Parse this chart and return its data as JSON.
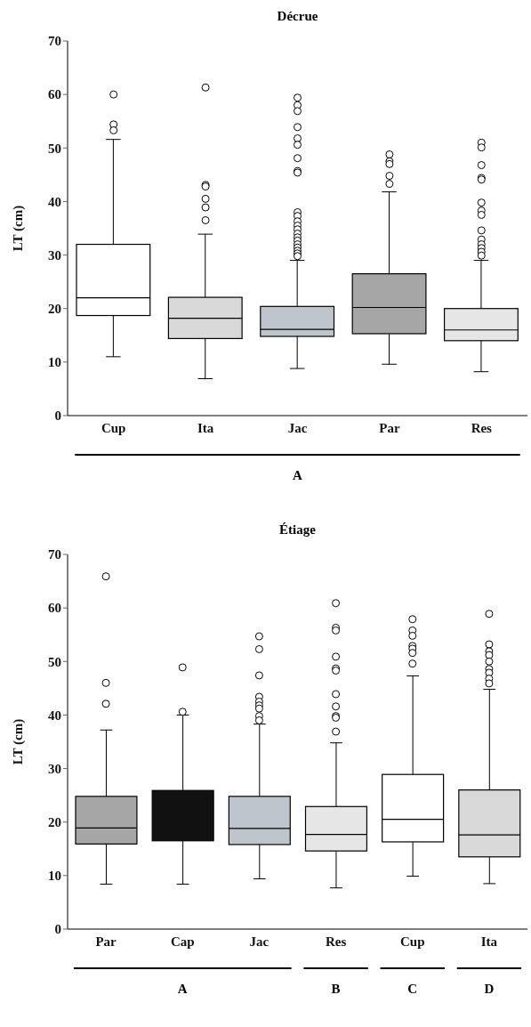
{
  "chart_data": [
    {
      "type": "box",
      "title": "Décrue",
      "ylabel": "LT (cm)",
      "categories": [
        "Cup",
        "Ita",
        "Jac",
        "Par",
        "Res"
      ],
      "colors": [
        "#ffffff",
        "#d9d9d9",
        "#bfc5cc",
        "#a6a6a6",
        "#e6e6e6"
      ],
      "ylim": [
        0,
        70
      ],
      "yticks": [
        0,
        10,
        20,
        30,
        40,
        50,
        60,
        70
      ],
      "grid": false,
      "annotations": [
        "A"
      ],
      "boxes": [
        {
          "low": 11,
          "q1": 18.7,
          "median": 22,
          "q3": 32,
          "high": 51.6,
          "outliers": [
            60,
            54.4,
            53.3
          ]
        },
        {
          "low": 6.9,
          "q1": 14.4,
          "median": 18.2,
          "q3": 22.1,
          "high": 33.9,
          "outliers": [
            61.3,
            43.1,
            42.8,
            40.5,
            38.9,
            36.5
          ]
        },
        {
          "low": 8.8,
          "q1": 14.8,
          "median": 16.1,
          "q3": 20.4,
          "high": 29,
          "outliers": [
            59.4,
            58,
            56.9,
            53.9,
            51.8,
            50.6,
            48.1,
            45.7,
            45.4,
            38,
            37.3,
            36.3,
            35.5,
            34.8,
            34,
            33.3,
            32.7,
            32,
            31.4,
            30.8,
            30.3,
            29.8
          ]
        },
        {
          "low": 9.6,
          "q1": 15.3,
          "median": 20.2,
          "q3": 26.5,
          "high": 41.8,
          "outliers": [
            48.8,
            47.5,
            47,
            44.8,
            43.3
          ]
        },
        {
          "low": 8.2,
          "q1": 14,
          "median": 16,
          "q3": 20,
          "high": 29,
          "outliers": [
            51,
            50.1,
            46.8,
            44.4,
            44.1,
            39.8,
            38.3,
            37.5,
            34.6,
            32.9,
            32,
            31.3,
            30.6,
            29.9
          ]
        }
      ]
    },
    {
      "type": "box",
      "title": "Étiage",
      "ylabel": "LT (cm)",
      "categories": [
        "Par",
        "Cap",
        "Jac",
        "Res",
        "Cup",
        "Ita"
      ],
      "colors": [
        "#a6a6a6",
        "#111111",
        "#bfc5cc",
        "#e6e6e6",
        "#ffffff",
        "#d9d9d9"
      ],
      "ylim": [
        0,
        70
      ],
      "yticks": [
        0,
        10,
        20,
        30,
        40,
        50,
        60,
        70
      ],
      "grid": false,
      "annotations": [
        "A",
        "B",
        "C",
        "D"
      ],
      "boxes": [
        {
          "low": 8.4,
          "q1": 15.9,
          "median": 18.9,
          "q3": 24.8,
          "high": 37.2,
          "outliers": [
            65.9,
            46,
            42.1
          ]
        },
        {
          "low": 8.4,
          "q1": 16.5,
          "median": null,
          "q3": 25.9,
          "high": 40,
          "outliers": [
            48.9,
            40.6
          ]
        },
        {
          "low": 9.4,
          "q1": 15.8,
          "median": 18.8,
          "q3": 24.8,
          "high": 38.3,
          "outliers": [
            54.7,
            52.3,
            47.4,
            43.4,
            42.5,
            41.8,
            41.2,
            39.8,
            39
          ]
        },
        {
          "low": 7.7,
          "q1": 14.6,
          "median": 17.7,
          "q3": 22.9,
          "high": 34.8,
          "outliers": [
            60.9,
            56.3,
            55.8,
            50.9,
            48.7,
            48.3,
            43.9,
            41.6,
            39.8,
            39.5,
            36.9
          ]
        },
        {
          "low": 9.9,
          "q1": 16.3,
          "median": 20.5,
          "q3": 28.9,
          "high": 47.3,
          "outliers": [
            57.9,
            55.8,
            54.8,
            52.9,
            52.4,
            51.6,
            49.6
          ]
        },
        {
          "low": 8.5,
          "q1": 13.5,
          "median": 17.6,
          "q3": 26,
          "high": 44.8,
          "outliers": [
            58.9,
            53.2,
            51.9,
            51.2,
            50,
            48.6,
            47.9,
            46.8,
            45.9
          ]
        }
      ]
    }
  ]
}
